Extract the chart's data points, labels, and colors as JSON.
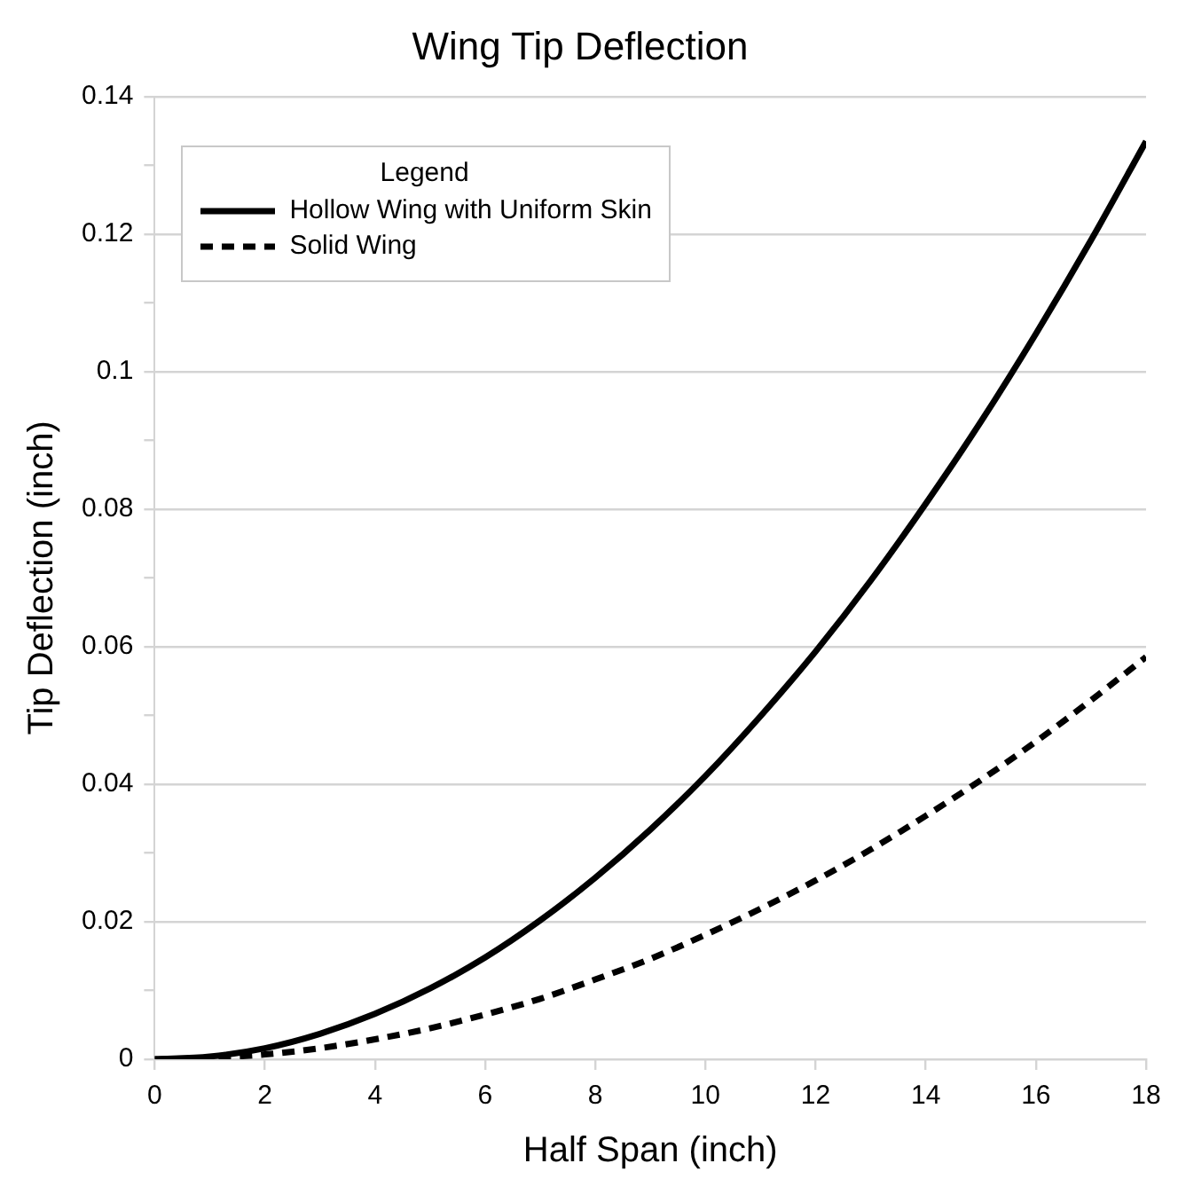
{
  "chart_data": {
    "type": "line",
    "title": "Wing Tip Deflection",
    "xlabel": "Half Span (inch)",
    "ylabel": "Tip Deflection (inch)",
    "legend_title": "Legend",
    "x": [
      0,
      1,
      2,
      3,
      4,
      5,
      6,
      7,
      8,
      9,
      10,
      11,
      12,
      13,
      14,
      15,
      16,
      17,
      18
    ],
    "series": [
      {
        "name": "Hollow Wing with Uniform Skin",
        "color": "#000000",
        "line_style": "solid",
        "values": [
          0,
          0.0004,
          0.0016,
          0.0037,
          0.0066,
          0.0103,
          0.0148,
          0.0202,
          0.0264,
          0.0334,
          0.0412,
          0.0499,
          0.0593,
          0.0696,
          0.0808,
          0.0927,
          0.1055,
          0.1191,
          0.1335
        ]
      },
      {
        "name": "Solid Wing",
        "color": "#000000",
        "line_style": "dashed",
        "values": [
          0,
          0.0002,
          0.0007,
          0.0016,
          0.0029,
          0.0045,
          0.0065,
          0.0088,
          0.0116,
          0.0146,
          0.0181,
          0.0219,
          0.026,
          0.0305,
          0.0354,
          0.0406,
          0.0462,
          0.0522,
          0.0585
        ]
      }
    ],
    "xlim": [
      0,
      18
    ],
    "xticks": [
      0,
      2,
      4,
      6,
      8,
      10,
      12,
      14,
      16,
      18
    ],
    "ylim": [
      0,
      0.14
    ],
    "yticks": [
      0,
      {
        "value": 0.01,
        "label": null
      },
      0.02,
      {
        "value": 0.03,
        "label": null
      },
      0.04,
      {
        "value": 0.05,
        "label": null
      },
      0.06,
      {
        "value": 0.07,
        "label": null
      },
      0.08,
      {
        "value": 0.09,
        "label": null
      },
      0.1,
      {
        "value": 0.11,
        "label": null
      },
      0.12,
      {
        "value": 0.13,
        "label": null
      },
      0.14
    ],
    "grid": "y",
    "legend": "top left",
    "marker": "none"
  }
}
